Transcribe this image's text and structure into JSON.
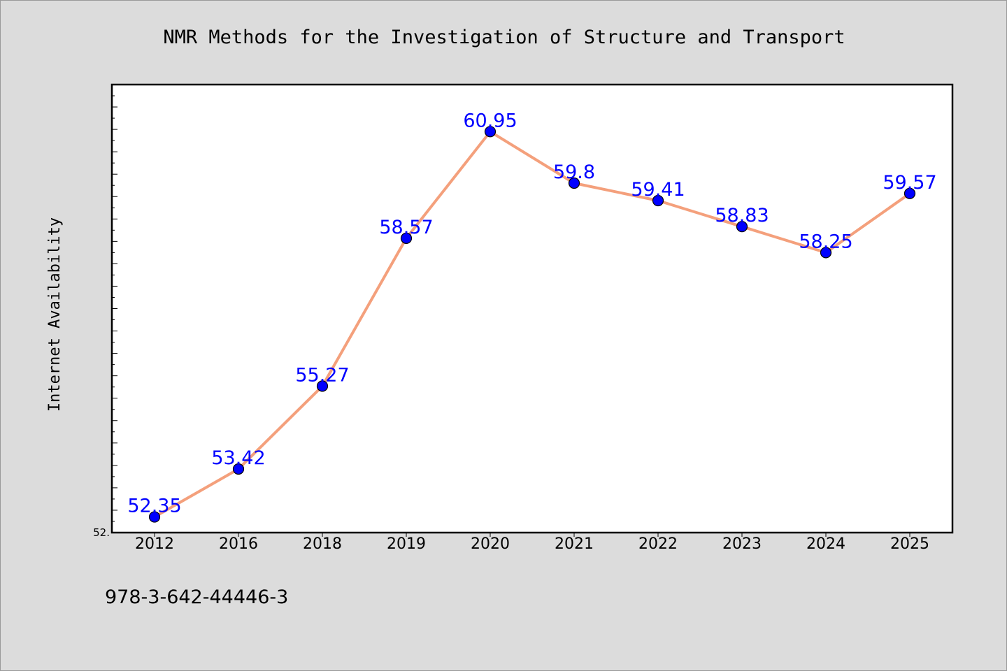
{
  "chart_data": {
    "type": "line",
    "title": "NMR Methods for the Investigation of Structure and Transport",
    "xlabel": "",
    "ylabel": "Internet Availability",
    "categories": [
      "2012",
      "2016",
      "2018",
      "2019",
      "2020",
      "2021",
      "2022",
      "2023",
      "2024",
      "2025"
    ],
    "series": [
      {
        "values": [
          52.35,
          53.42,
          55.27,
          58.57,
          60.95,
          59.8,
          59.41,
          58.83,
          58.25,
          59.57
        ],
        "labels": [
          "52.35",
          "53.42",
          "55.27",
          "58.57",
          "60.95",
          "59.8",
          "59.41",
          "58.83",
          "58.25",
          "59.57"
        ]
      }
    ],
    "ylim": [
      52.0,
      62.0
    ],
    "y_tick_labels": [
      {
        "value": 52.0,
        "label": "52."
      }
    ],
    "grid": false,
    "legend": "none",
    "footnote": "978-3-642-44446-3",
    "colors": {
      "background": "#dcdcdc",
      "plot_background": "#ffffff",
      "line": "#f4a07c",
      "marker": "#0000ff",
      "data_label": "#0000ff",
      "text": "#000000"
    }
  }
}
